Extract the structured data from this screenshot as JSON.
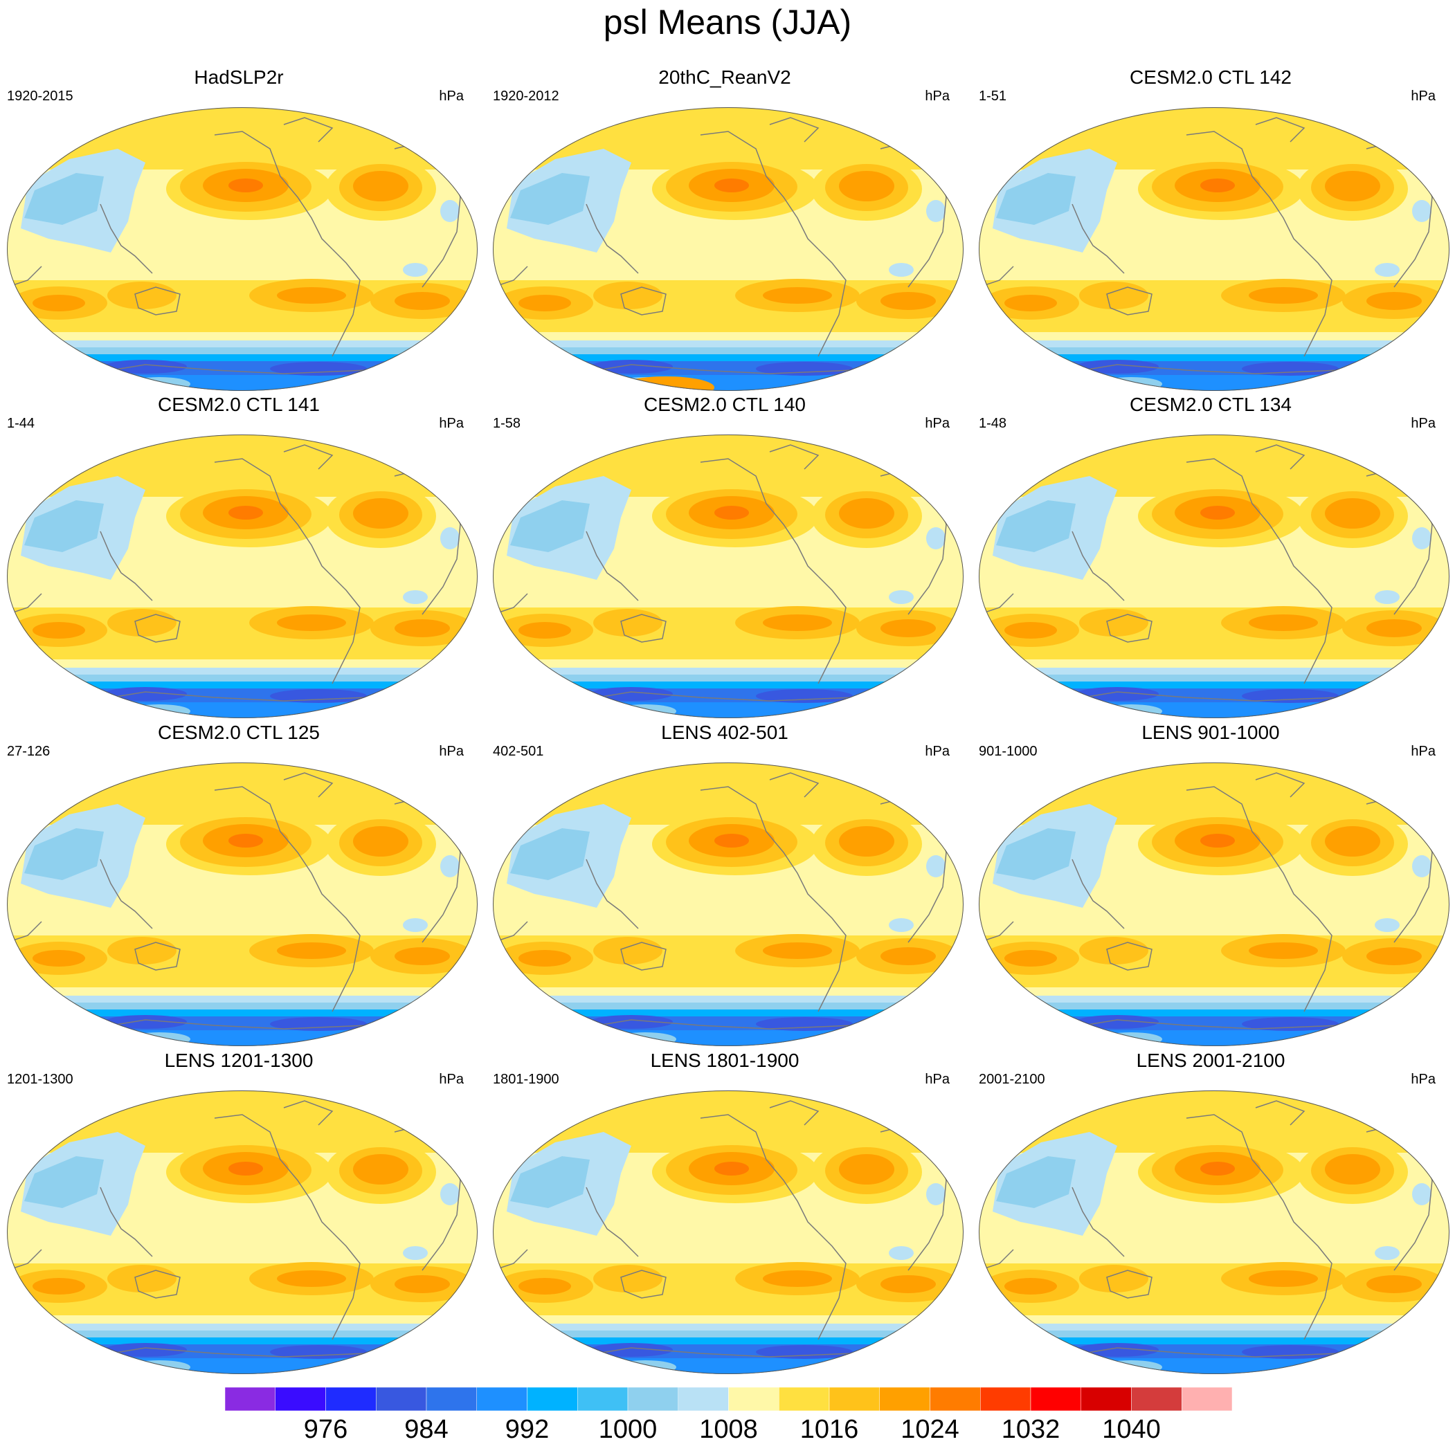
{
  "title": "psl Means (JJA)",
  "colors": {
    "levels": [
      "#8a2be2",
      "#3a0cff",
      "#1f2cff",
      "#3858e0",
      "#2e74ec",
      "#1e90ff",
      "#00b2ff",
      "#3fc0f5",
      "#8fd0ee",
      "#b9e1f5",
      "#fff8a8",
      "#ffe040",
      "#ffc21a",
      "#ffa000",
      "#ff7c00",
      "#ff3c00",
      "#ff0000",
      "#d80000",
      "#d43c3c",
      "#ffb0b0"
    ],
    "coastline": "#7a7a7a",
    "outline": "#555555"
  },
  "panels": [
    {
      "title": "HadSLP2r",
      "left": "1920-2015",
      "right": "hPa"
    },
    {
      "title": "20thC_ReanV2",
      "left": "1920-2012",
      "right": "hPa"
    },
    {
      "title": "CESM2.0 CTL 142",
      "left": "1-51",
      "right": "hPa"
    },
    {
      "title": "CESM2.0 CTL 141",
      "left": "1-44",
      "right": "hPa"
    },
    {
      "title": "CESM2.0 CTL 140",
      "left": "1-58",
      "right": "hPa"
    },
    {
      "title": "CESM2.0 CTL 134",
      "left": "1-48",
      "right": "hPa"
    },
    {
      "title": "CESM2.0 CTL 125",
      "left": "27-126",
      "right": "hPa"
    },
    {
      "title": "LENS 402-501",
      "left": "402-501",
      "right": "hPa"
    },
    {
      "title": "LENS 901-1000",
      "left": "901-1000",
      "right": "hPa"
    },
    {
      "title": "LENS 1201-1300",
      "left": "1201-1300",
      "right": "hPa"
    },
    {
      "title": "LENS 1801-1900",
      "left": "1801-1900",
      "right": "hPa"
    },
    {
      "title": "LENS 2001-2100",
      "left": "2001-2100",
      "right": "hPa"
    }
  ],
  "colorbar": {
    "labels": [
      "976",
      "984",
      "992",
      "1000",
      "1008",
      "1016",
      "1024",
      "1032",
      "1040"
    ]
  }
}
